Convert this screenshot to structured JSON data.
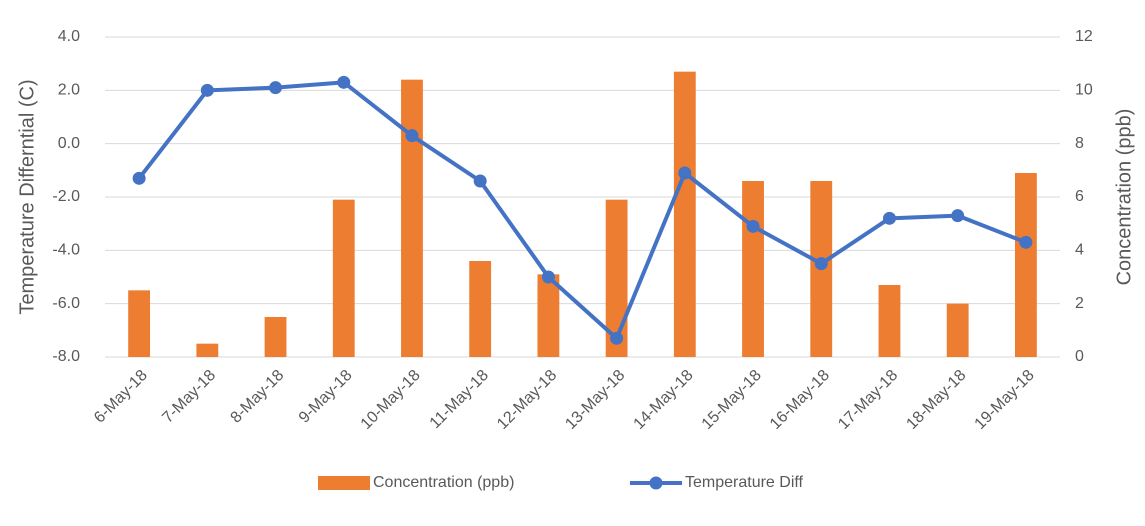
{
  "chart_data": {
    "type": "combo",
    "y_label": "Temperature Differntial (C)",
    "y2_label": "Concentration (ppb)",
    "categories": [
      "6-May-18",
      "7-May-18",
      "8-May-18",
      "9-May-18",
      "10-May-18",
      "11-May-18",
      "12-May-18",
      "13-May-18",
      "14-May-18",
      "15-May-18",
      "16-May-18",
      "17-May-18",
      "18-May-18",
      "19-May-18"
    ],
    "series": [
      {
        "name": "Concentration (ppb)",
        "type": "bar",
        "axis": "y2",
        "color": "#ed7d31",
        "values": [
          2.5,
          0.5,
          1.5,
          5.9,
          10.4,
          3.6,
          3.1,
          5.9,
          10.7,
          6.6,
          6.6,
          2.7,
          2.0,
          6.9
        ]
      },
      {
        "name": "Temperature Diff",
        "type": "line",
        "axis": "y",
        "color": "#4472c4",
        "values": [
          -1.3,
          2.0,
          2.1,
          2.3,
          0.3,
          -1.4,
          -5.0,
          -7.3,
          -1.1,
          -3.1,
          -4.5,
          -2.8,
          -2.7,
          -3.7
        ]
      }
    ],
    "ylim": [
      -8,
      4
    ],
    "yticks": [
      {
        "value": -8,
        "label": "-8.0"
      },
      {
        "value": -6,
        "label": "-6.0"
      },
      {
        "value": -4,
        "label": "-4.0"
      },
      {
        "value": -2,
        "label": "-2.0"
      },
      {
        "value": 0,
        "label": "0.0"
      },
      {
        "value": 2,
        "label": "2.0"
      },
      {
        "value": 4,
        "label": "4.0"
      }
    ],
    "y2lim": [
      0,
      12
    ],
    "y2ticks": [
      0,
      2,
      4,
      6,
      8,
      10,
      12
    ],
    "grid": true,
    "legend": "bottom"
  }
}
